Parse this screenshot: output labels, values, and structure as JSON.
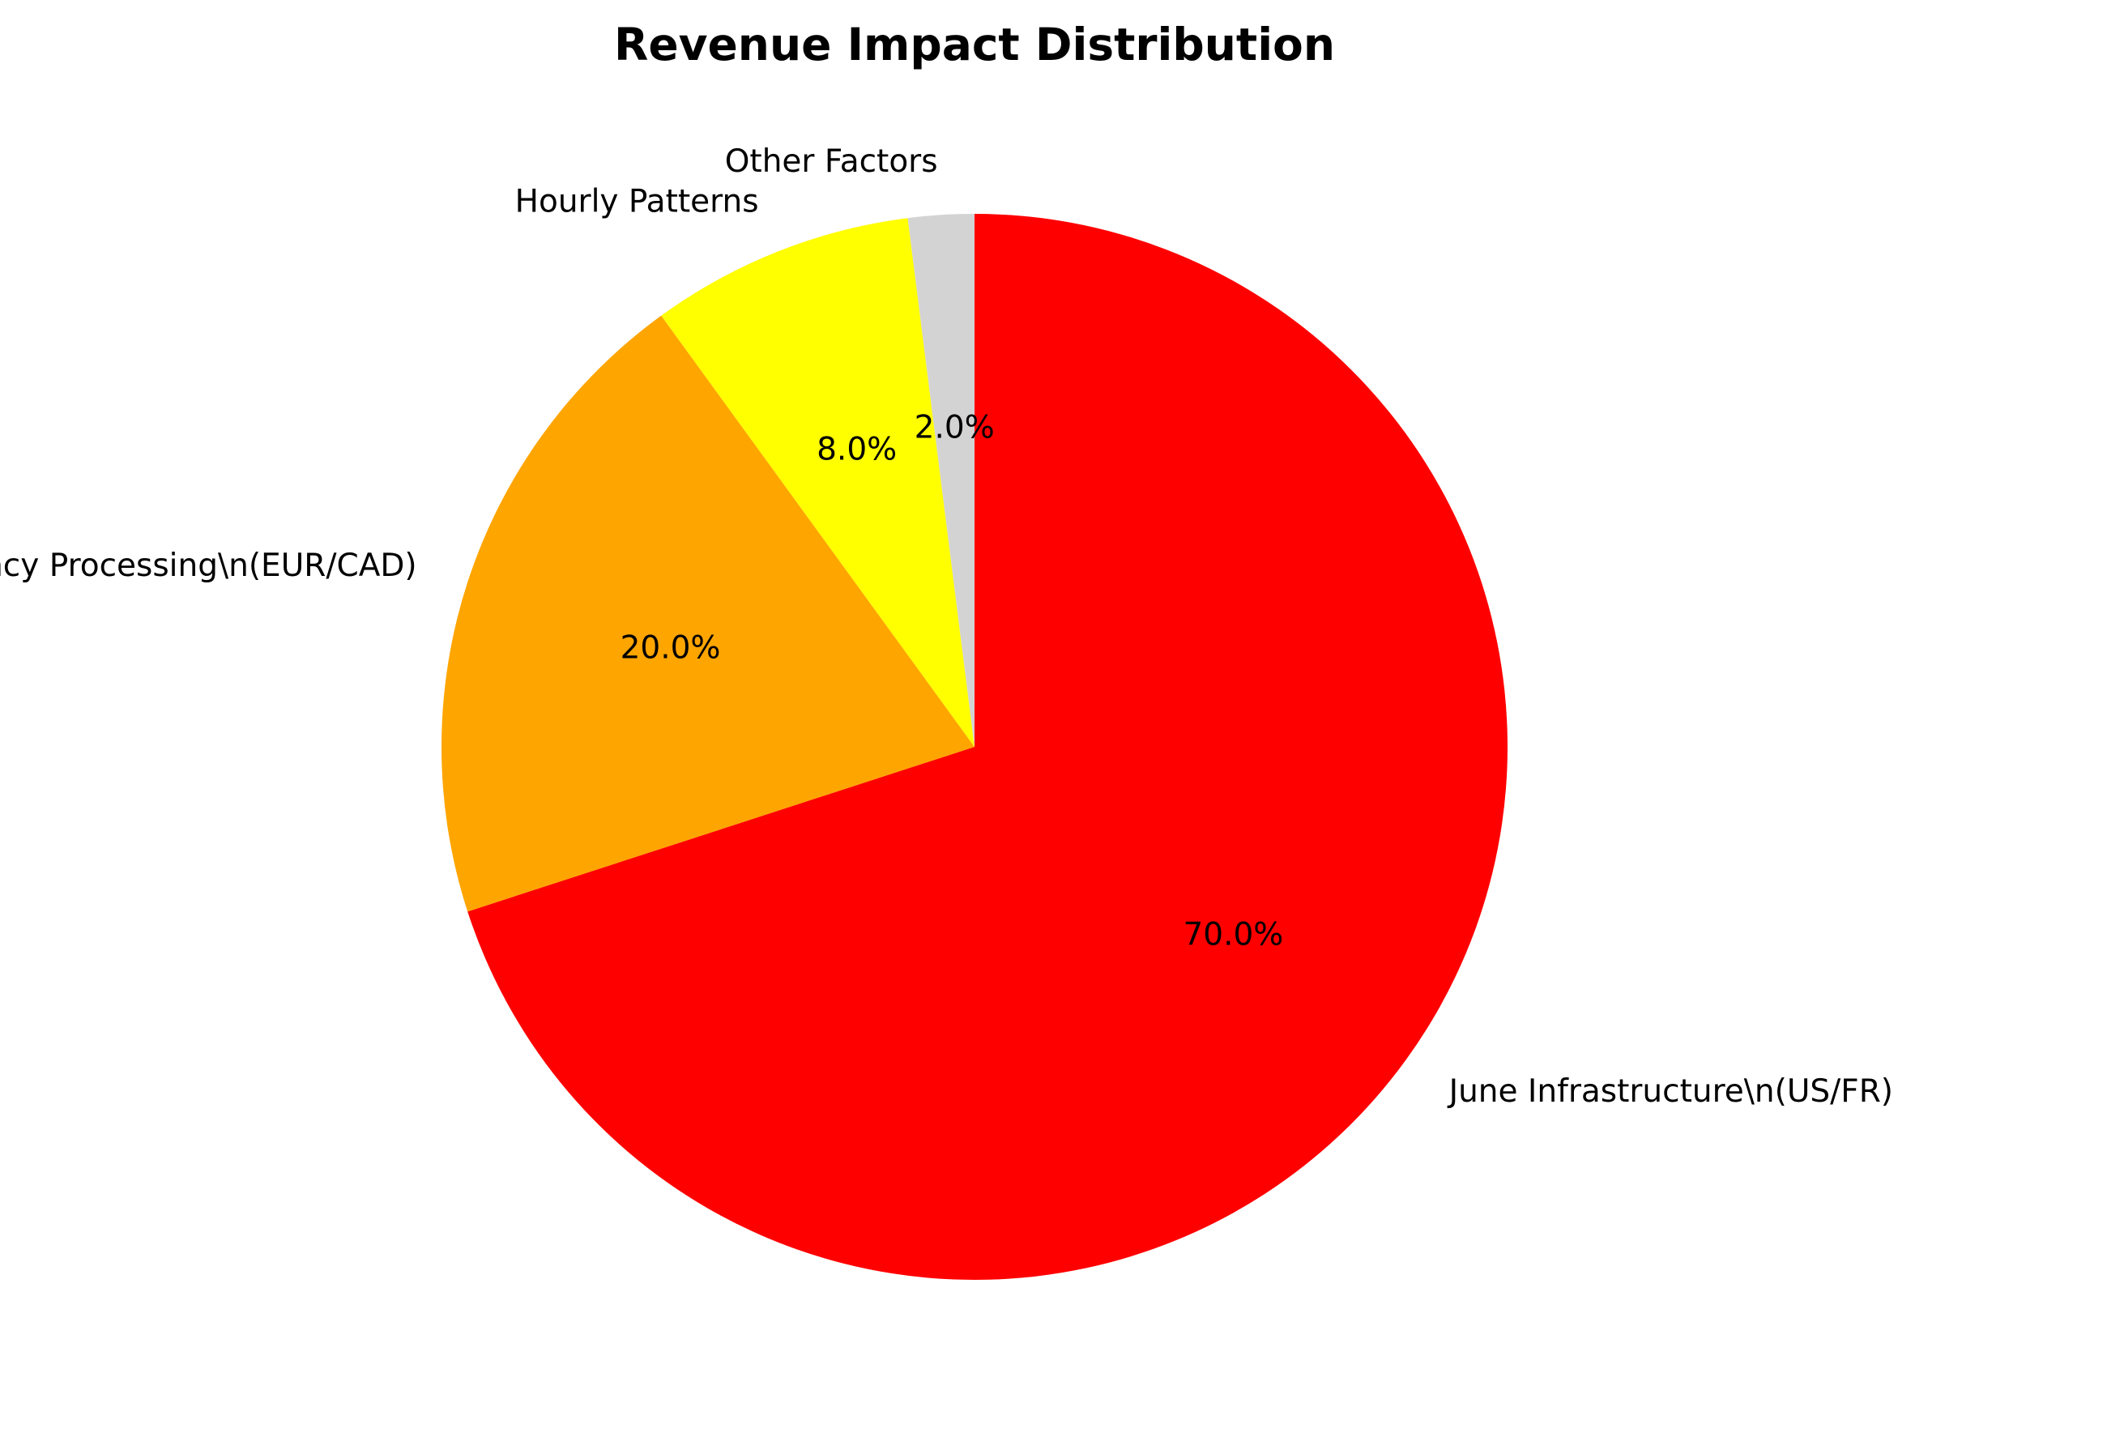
{
  "chart_data": {
    "type": "pie",
    "title": "Revenue Impact Distribution",
    "start_angle_deg": 90,
    "direction": "clockwise",
    "slices": [
      {
        "label": "June Infrastructure\\n(US/FR)",
        "value": 70.0,
        "pct_label": "70.0%",
        "color": "#ff0000"
      },
      {
        "label": "Currency Processing\\n(EUR/CAD)",
        "value": 20.0,
        "pct_label": "20.0%",
        "color": "#ffa500"
      },
      {
        "label": "Hourly Patterns",
        "value": 8.0,
        "pct_label": "8.0%",
        "color": "#ffff00"
      },
      {
        "label": "Other Factors",
        "value": 2.0,
        "pct_label": "2.0%",
        "color": "#d3d3d3"
      }
    ]
  }
}
